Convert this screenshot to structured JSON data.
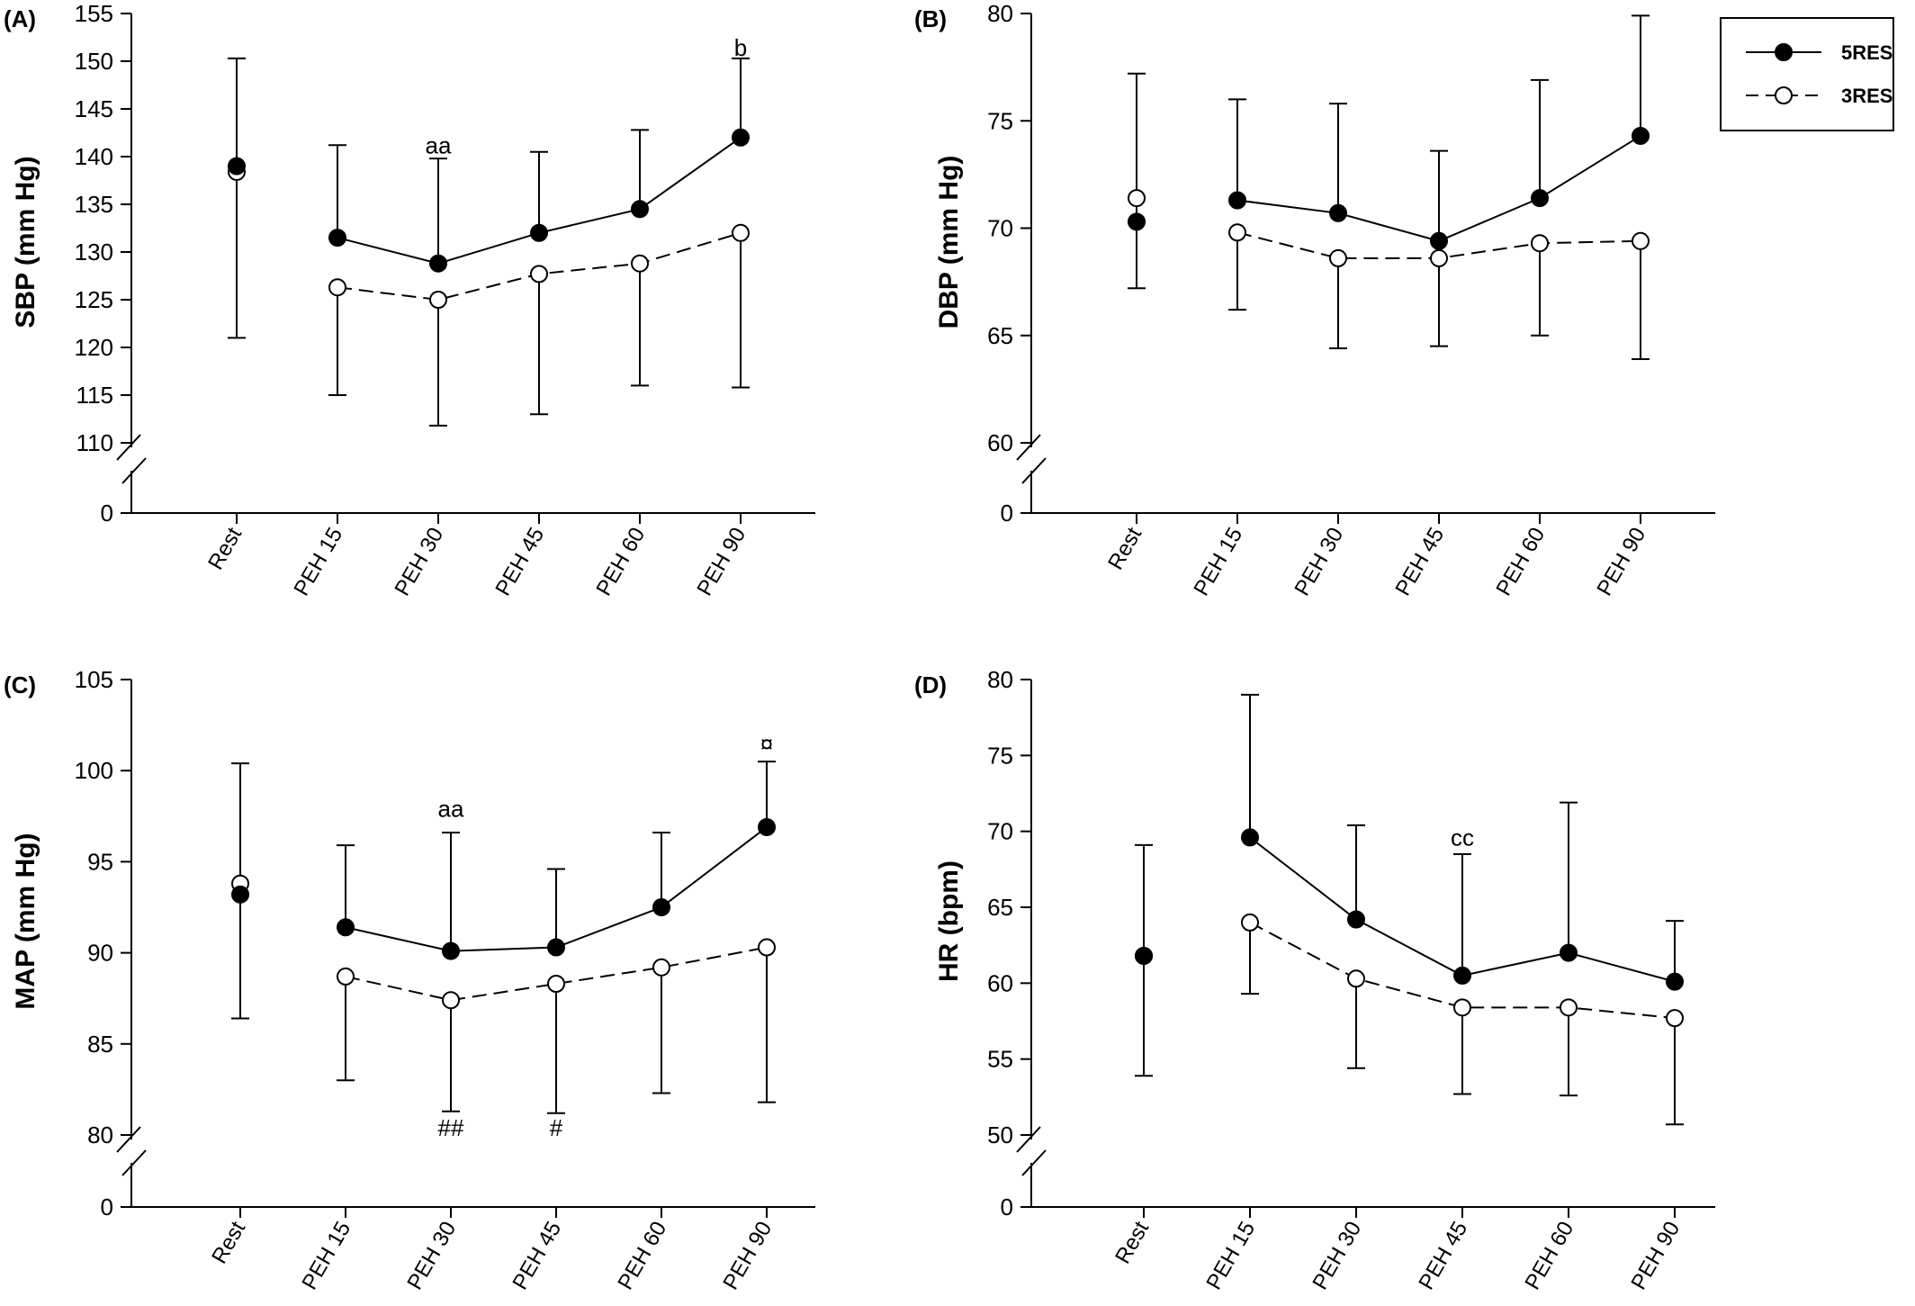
{
  "legend": {
    "entries": [
      {
        "label": "5RES",
        "marker": "filled-circle",
        "line": "solid"
      },
      {
        "label": "3RES",
        "marker": "open-circle",
        "line": "dashed"
      }
    ]
  },
  "chart_data": [
    {
      "type": "line",
      "panel": "(A)",
      "ylabel": "SBP (mm Hg)",
      "categories": [
        "Rest",
        "PEH 15",
        "PEH 30",
        "PEH 45",
        "PEH 60",
        "PEH 90"
      ],
      "yticks": [
        110,
        115,
        120,
        125,
        130,
        135,
        140,
        145,
        150,
        155
      ],
      "ylim": [
        110,
        155
      ],
      "axis_break": true,
      "baseline_tick": 0,
      "series": [
        {
          "name": "5RES",
          "values": [
            139.0,
            131.5,
            128.8,
            132.0,
            134.5,
            142.0
          ],
          "error_up": [
            150.3,
            141.2,
            139.8,
            140.5,
            142.8,
            150.3
          ]
        },
        {
          "name": "3RES",
          "values": [
            138.4,
            126.3,
            125.0,
            127.7,
            128.8,
            132.0
          ],
          "error_down": [
            121.0,
            115.0,
            111.8,
            113.0,
            116.0,
            115.8
          ]
        }
      ],
      "annotations": [
        {
          "text": "aa",
          "category": "PEH 30",
          "y": 141.2
        },
        {
          "text": "b",
          "category": "PEH 90",
          "y": 151.4
        }
      ]
    },
    {
      "type": "line",
      "panel": "(B)",
      "ylabel": "DBP (mm Hg)",
      "categories": [
        "Rest",
        "PEH 15",
        "PEH 30",
        "PEH 45",
        "PEH 60",
        "PEH 90"
      ],
      "yticks": [
        60,
        65,
        70,
        75,
        80
      ],
      "ylim": [
        60,
        80
      ],
      "axis_break": true,
      "baseline_tick": 0,
      "series": [
        {
          "name": "5RES",
          "values": [
            70.3,
            71.3,
            70.7,
            69.4,
            71.4,
            74.3
          ],
          "error_up": [
            null,
            76.0,
            75.8,
            73.6,
            76.9,
            79.9
          ]
        },
        {
          "name": "3RES",
          "values": [
            71.4,
            69.8,
            68.6,
            68.6,
            69.3,
            69.4
          ],
          "error_up": [
            77.2,
            null,
            null,
            null,
            null,
            null
          ],
          "error_down": [
            67.2,
            66.2,
            64.4,
            64.5,
            65.0,
            63.9
          ]
        }
      ],
      "annotations": []
    },
    {
      "type": "line",
      "panel": "(C)",
      "ylabel": "MAP (mm Hg)",
      "categories": [
        "Rest",
        "PEH 15",
        "PEH 30",
        "PEH 45",
        "PEH 60",
        "PEH 90"
      ],
      "yticks": [
        80,
        85,
        90,
        95,
        100,
        105
      ],
      "ylim": [
        80,
        105
      ],
      "axis_break": true,
      "baseline_tick": 0,
      "series": [
        {
          "name": "5RES",
          "values": [
            93.2,
            91.4,
            90.1,
            90.3,
            92.5,
            96.9
          ],
          "error_up": [
            100.4,
            95.9,
            96.6,
            94.6,
            96.6,
            100.5
          ]
        },
        {
          "name": "3RES",
          "values": [
            93.8,
            88.7,
            87.4,
            88.3,
            89.2,
            90.3
          ],
          "error_down": [
            86.4,
            83.0,
            81.3,
            81.2,
            82.3,
            81.8
          ]
        }
      ],
      "annotations": [
        {
          "text": "aa",
          "category": "PEH 30",
          "y": 97.9
        },
        {
          "text": "¤",
          "category": "PEH 90",
          "y": 101.5
        },
        {
          "text": "##",
          "category": "PEH 30",
          "y": 80.4
        },
        {
          "text": "#",
          "category": "PEH 45",
          "y": 80.4
        }
      ]
    },
    {
      "type": "line",
      "panel": "(D)",
      "ylabel": "HR (bpm)",
      "categories": [
        "Rest",
        "PEH 15",
        "PEH 30",
        "PEH 45",
        "PEH 60",
        "PEH 90"
      ],
      "yticks": [
        50,
        55,
        60,
        65,
        70,
        75,
        80
      ],
      "ylim": [
        50,
        80
      ],
      "axis_break": true,
      "baseline_tick": 0,
      "series": [
        {
          "name": "5RES",
          "values": [
            61.8,
            69.6,
            64.2,
            60.5,
            62.0,
            60.1
          ],
          "error_up": [
            69.1,
            79.0,
            70.4,
            68.5,
            71.9,
            64.1
          ]
        },
        {
          "name": "3RES",
          "values": [
            61.8,
            64.0,
            60.3,
            58.4,
            58.4,
            57.7
          ],
          "error_down": [
            53.9,
            59.3,
            54.4,
            52.7,
            52.6,
            50.7
          ]
        }
      ],
      "annotations": [
        {
          "text": "cc",
          "category": "PEH 45",
          "y": 69.6
        }
      ]
    }
  ]
}
